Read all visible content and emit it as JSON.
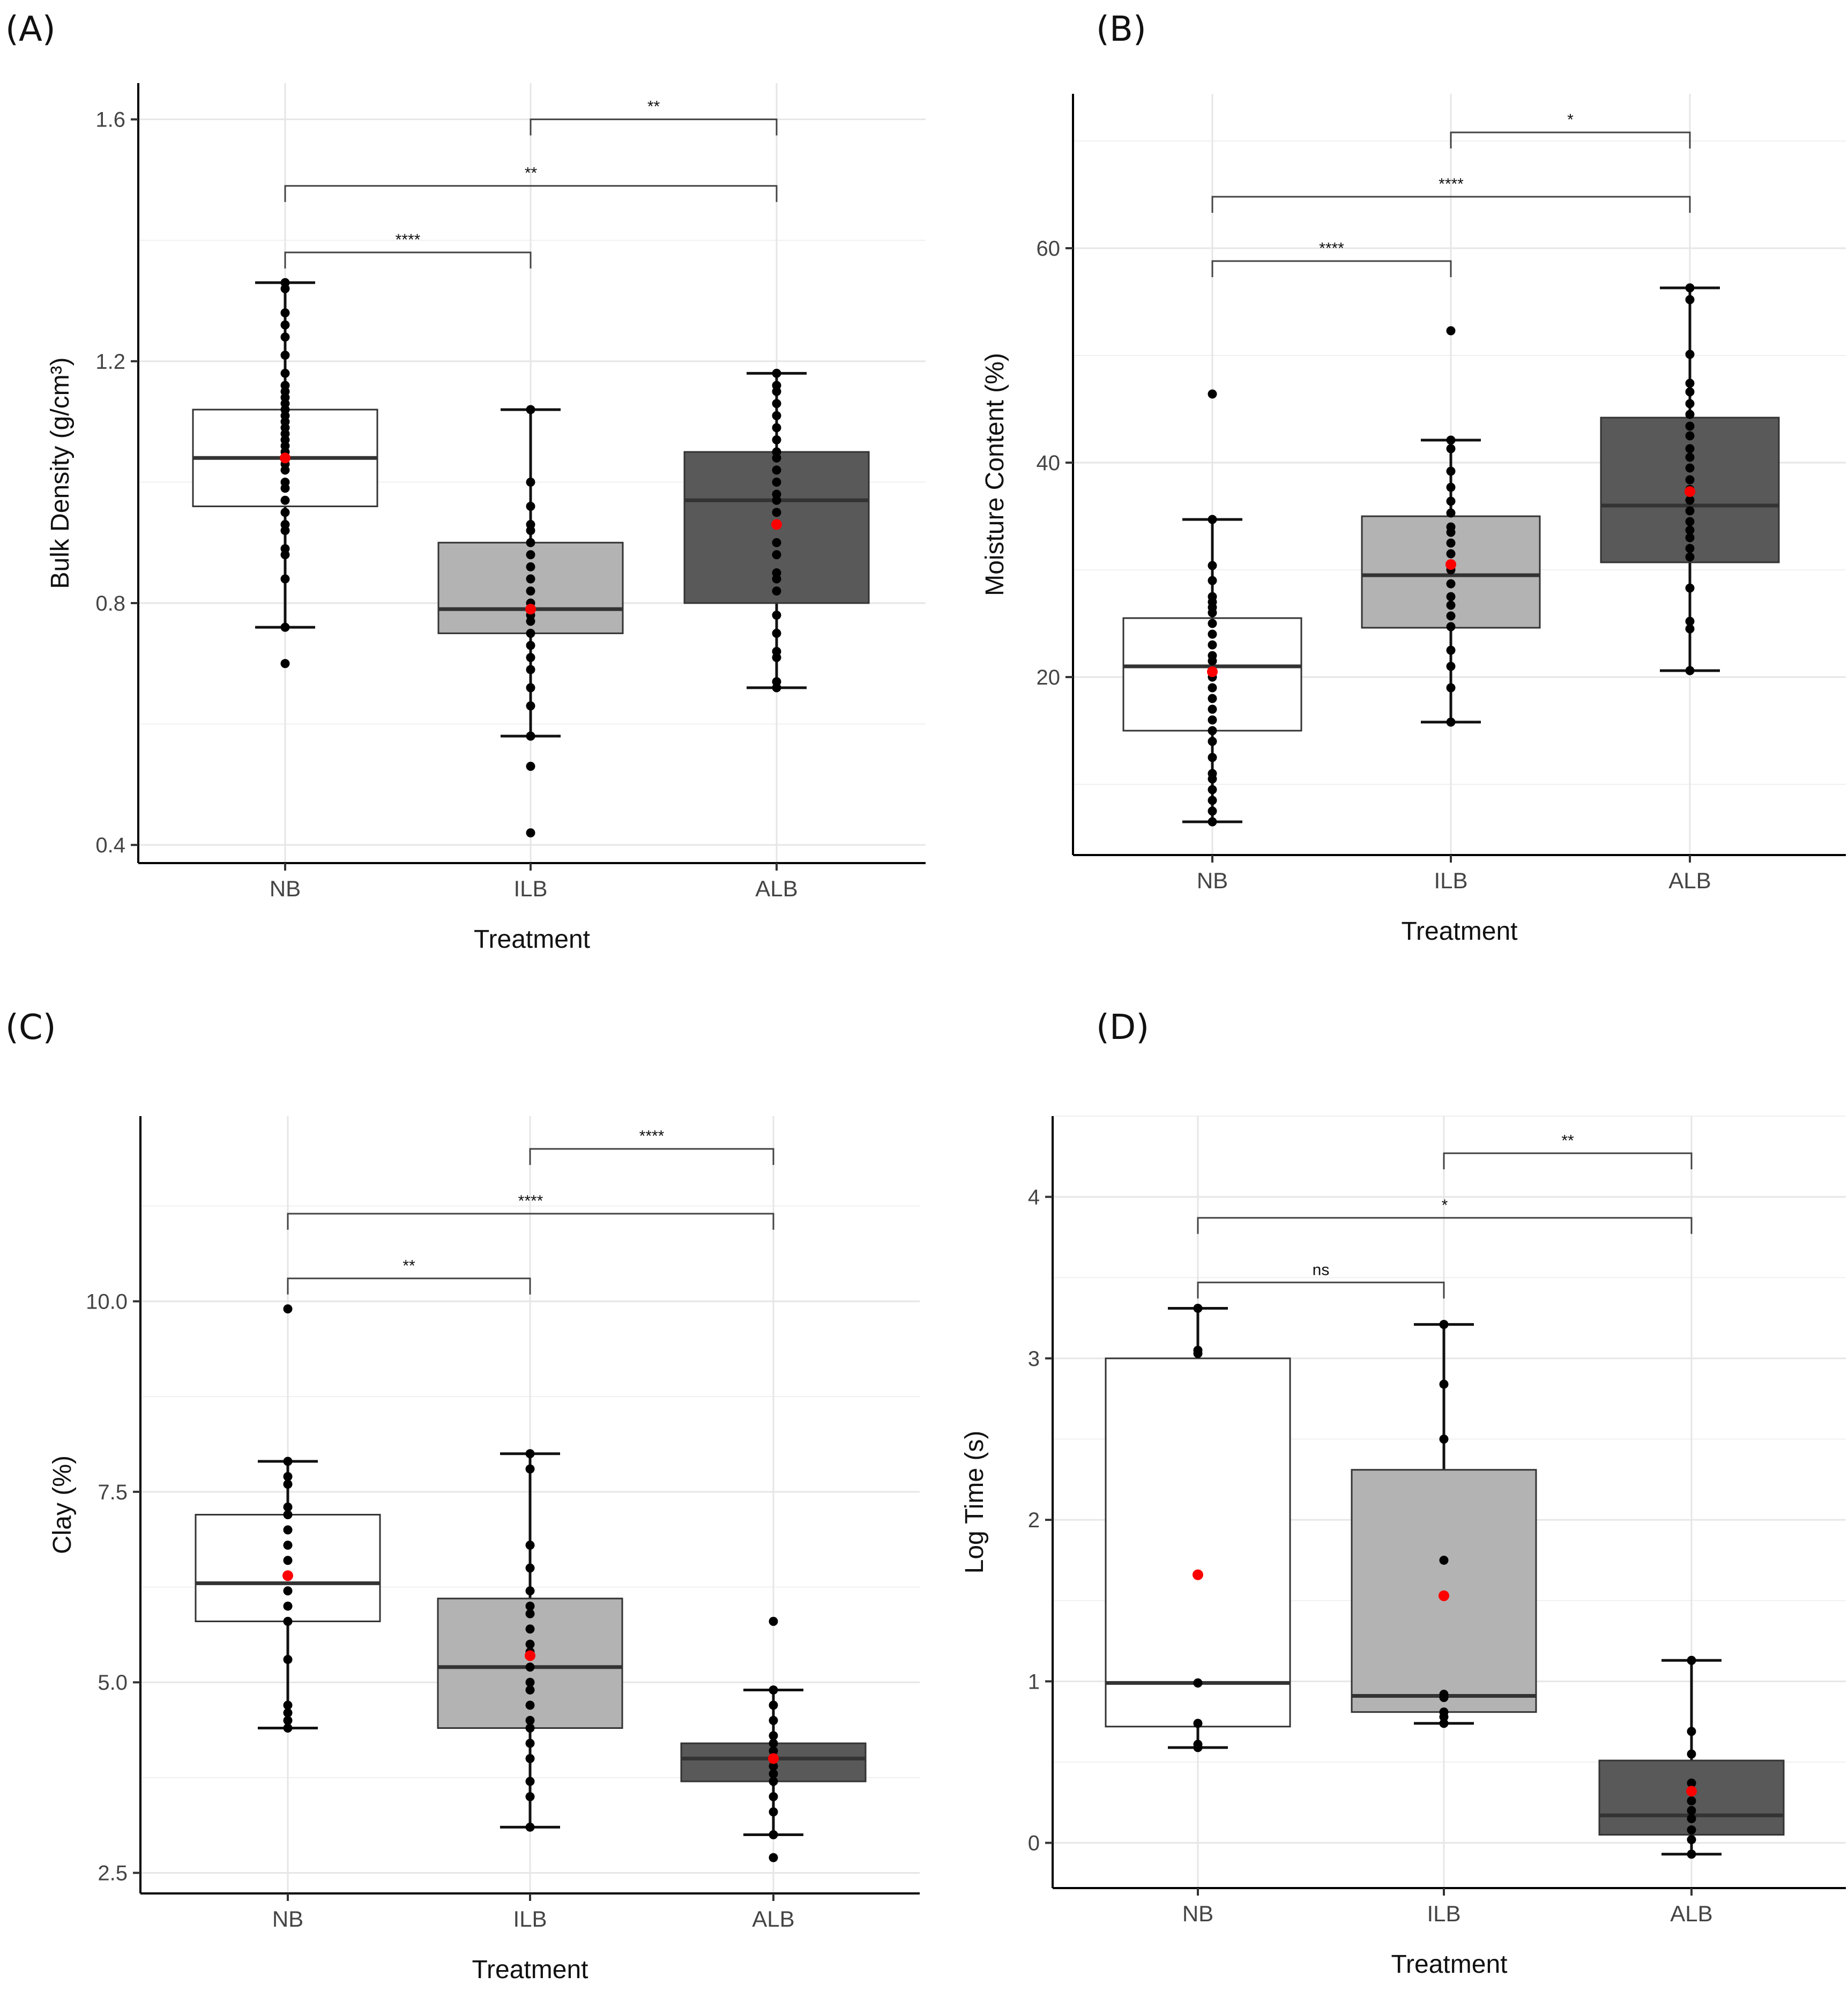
{
  "figure": {
    "x_axis_title": "Treatment",
    "categories": [
      "NB",
      "ILB",
      "ALB"
    ],
    "colors": {
      "box_NB": "#ffffff",
      "box_ILB": "#b3b3b3",
      "box_ALB": "#595959",
      "points": "#000000",
      "mean": "#ff0000",
      "grid": "#e6e6e6",
      "axis": "#000000"
    }
  },
  "chart_data": [
    {
      "panel": "(A)",
      "type": "box",
      "ylabel": "Bulk Density  (g/cm³)",
      "xlabel": "Treatment",
      "ylim": [
        0.37,
        1.66
      ],
      "yticks": [
        0.4,
        0.8,
        1.2,
        1.6
      ],
      "ytick_labels": [
        "0.4",
        "0.8",
        "1.2",
        "1.6"
      ],
      "grid": true,
      "boxes": [
        {
          "category": "NB",
          "q1": 0.96,
          "median": 1.04,
          "q3": 1.12,
          "whisker_low": 0.76,
          "whisker_high": 1.33,
          "mean": 1.04,
          "points": [
            0.7,
            0.76,
            0.84,
            0.88,
            0.89,
            0.92,
            0.93,
            0.95,
            0.97,
            0.99,
            1.0,
            1.02,
            1.03,
            1.04,
            1.05,
            1.06,
            1.07,
            1.08,
            1.09,
            1.1,
            1.11,
            1.12,
            1.13,
            1.14,
            1.15,
            1.16,
            1.18,
            1.21,
            1.24,
            1.26,
            1.28,
            1.32,
            1.33
          ]
        },
        {
          "category": "ILB",
          "q1": 0.75,
          "median": 0.79,
          "q3": 0.9,
          "whisker_low": 0.58,
          "whisker_high": 1.12,
          "mean": 0.79,
          "points": [
            0.42,
            0.53,
            0.58,
            0.58,
            0.63,
            0.66,
            0.69,
            0.71,
            0.73,
            0.75,
            0.77,
            0.78,
            0.79,
            0.8,
            0.82,
            0.84,
            0.86,
            0.88,
            0.9,
            0.92,
            0.93,
            0.96,
            1.0,
            1.12
          ]
        },
        {
          "category": "ALB",
          "q1": 0.8,
          "median": 0.97,
          "q3": 1.05,
          "whisker_low": 0.66,
          "whisker_high": 1.18,
          "mean": 0.93,
          "points": [
            0.66,
            0.67,
            0.71,
            0.72,
            0.75,
            0.78,
            0.82,
            0.84,
            0.85,
            0.88,
            0.9,
            0.93,
            0.95,
            0.97,
            0.98,
            1.0,
            1.02,
            1.04,
            1.05,
            1.07,
            1.09,
            1.11,
            1.13,
            1.15,
            1.16,
            1.18
          ]
        }
      ],
      "comparisons": [
        {
          "from": "NB",
          "to": "ILB",
          "y": 1.38,
          "label": "****"
        },
        {
          "from": "NB",
          "to": "ALB",
          "y": 1.49,
          "label": "**"
        },
        {
          "from": "ILB",
          "to": "ALB",
          "y": 1.6,
          "label": "**"
        }
      ]
    },
    {
      "panel": "(B)",
      "type": "box",
      "ylabel": "Moisture Content (%)",
      "xlabel": "Treatment",
      "ylim": [
        3.4,
        74.4
      ],
      "yticks": [
        20,
        40,
        60
      ],
      "ytick_labels": [
        "20",
        "40",
        "60"
      ],
      "grid": true,
      "boxes": [
        {
          "category": "NB",
          "q1": 15,
          "median": 21,
          "q3": 25.5,
          "whisker_low": 6.5,
          "whisker_high": 34.7,
          "mean": 20.5,
          "points": [
            6.5,
            7.5,
            8.5,
            9.5,
            10.5,
            11,
            12.5,
            14,
            15,
            16,
            17,
            18,
            19,
            20,
            20.5,
            21.5,
            22,
            23,
            24,
            25,
            26,
            26.5,
            27,
            27.5,
            29,
            30.4,
            34.7,
            46.4
          ]
        },
        {
          "category": "ILB",
          "q1": 24.6,
          "median": 29.5,
          "q3": 35,
          "whisker_low": 15.8,
          "whisker_high": 42.1,
          "mean": 30.5,
          "points": [
            15.8,
            19,
            21,
            22.5,
            24.7,
            25.7,
            26.7,
            27.5,
            28.7,
            30,
            30.5,
            31.5,
            32.5,
            33.5,
            34,
            35.3,
            36.4,
            37.7,
            39.2,
            41.3,
            42.1,
            52.3
          ]
        },
        {
          "category": "ALB",
          "q1": 30.7,
          "median": 36,
          "q3": 44.2,
          "whisker_low": 20.6,
          "whisker_high": 56.3,
          "mean": 37.3,
          "points": [
            20.6,
            24.5,
            25.2,
            28.3,
            31.2,
            32,
            33,
            33.7,
            34.5,
            35.5,
            36.5,
            37.5,
            38.4,
            39.5,
            40.5,
            41.3,
            42.5,
            43.4,
            44.5,
            45.5,
            46.6,
            47.4,
            50.1,
            55.2,
            56.3
          ]
        }
      ],
      "comparisons": [
        {
          "from": "NB",
          "to": "ILB",
          "y": 58.8,
          "label": "****"
        },
        {
          "from": "NB",
          "to": "ALB",
          "y": 64.8,
          "label": "****"
        },
        {
          "from": "ILB",
          "to": "ALB",
          "y": 70.8,
          "label": "*"
        }
      ]
    },
    {
      "panel": "(C)",
      "type": "box",
      "ylabel": "Clay (%)",
      "xlabel": "Treatment",
      "ylim": [
        2.23,
        12.43
      ],
      "yticks": [
        2.5,
        5.0,
        7.5,
        10.0
      ],
      "ytick_labels": [
        "2.5",
        "5.0",
        "7.5",
        "10.0"
      ],
      "grid": true,
      "boxes": [
        {
          "category": "NB",
          "q1": 5.8,
          "median": 6.3,
          "q3": 7.2,
          "whisker_low": 4.4,
          "whisker_high": 7.9,
          "mean": 6.4,
          "points": [
            4.4,
            4.5,
            4.6,
            4.7,
            5.3,
            5.8,
            6.0,
            6.2,
            6.4,
            6.6,
            6.8,
            7.0,
            7.2,
            7.3,
            7.6,
            7.7,
            7.9,
            9.9
          ]
        },
        {
          "category": "ILB",
          "q1": 4.4,
          "median": 5.2,
          "q3": 6.1,
          "whisker_low": 3.1,
          "whisker_high": 8.0,
          "mean": 5.35,
          "points": [
            3.1,
            3.5,
            3.7,
            4.0,
            4.2,
            4.4,
            4.5,
            4.7,
            4.9,
            5.0,
            5.2,
            5.4,
            5.5,
            5.7,
            5.9,
            6.0,
            6.2,
            6.5,
            6.8,
            7.8,
            8.0
          ]
        },
        {
          "category": "ALB",
          "q1": 3.7,
          "median": 4.0,
          "q3": 4.2,
          "whisker_low": 3.0,
          "whisker_high": 4.9,
          "mean": 4.0,
          "points": [
            2.7,
            3.0,
            3.3,
            3.5,
            3.7,
            3.8,
            3.9,
            4.0,
            4.1,
            4.2,
            4.3,
            4.5,
            4.7,
            4.9,
            5.8
          ]
        }
      ],
      "comparisons": [
        {
          "from": "NB",
          "to": "ILB",
          "y": 10.3,
          "label": "**"
        },
        {
          "from": "NB",
          "to": "ALB",
          "y": 11.15,
          "label": "****"
        },
        {
          "from": "ILB",
          "to": "ALB",
          "y": 12.0,
          "label": "****"
        }
      ]
    },
    {
      "panel": "(D)",
      "type": "box",
      "ylabel": "Log Time (s)",
      "xlabel": "Treatment",
      "ylim": [
        -0.28,
        4.5
      ],
      "yticks": [
        0,
        1,
        2,
        3,
        4
      ],
      "ytick_labels": [
        "0",
        "1",
        "2",
        "3",
        "4"
      ],
      "grid": true,
      "boxes": [
        {
          "category": "NB",
          "q1": 0.72,
          "median": 0.99,
          "q3": 3.0,
          "whisker_low": 0.59,
          "whisker_high": 3.31,
          "mean": 1.66,
          "points": [
            0.59,
            0.61,
            0.74,
            0.99,
            0.99,
            3.03,
            3.05,
            3.31
          ]
        },
        {
          "category": "ILB",
          "q1": 0.81,
          "median": 0.91,
          "q3": 2.31,
          "whisker_low": 0.74,
          "whisker_high": 3.21,
          "mean": 1.53,
          "points": [
            0.74,
            0.78,
            0.81,
            0.9,
            0.92,
            1.75,
            2.5,
            2.84,
            3.21
          ]
        },
        {
          "category": "ALB",
          "q1": 0.05,
          "median": 0.17,
          "q3": 0.51,
          "whisker_low": -0.07,
          "whisker_high": 1.13,
          "mean": 0.32,
          "points": [
            -0.07,
            0.02,
            0.08,
            0.15,
            0.2,
            0.26,
            0.37,
            0.55,
            0.69,
            1.13
          ]
        }
      ],
      "comparisons": [
        {
          "from": "NB",
          "to": "ILB",
          "y": 3.47,
          "label": "ns"
        },
        {
          "from": "NB",
          "to": "ALB",
          "y": 3.87,
          "label": "*"
        },
        {
          "from": "ILB",
          "to": "ALB",
          "y": 4.27,
          "label": "**"
        }
      ]
    }
  ]
}
